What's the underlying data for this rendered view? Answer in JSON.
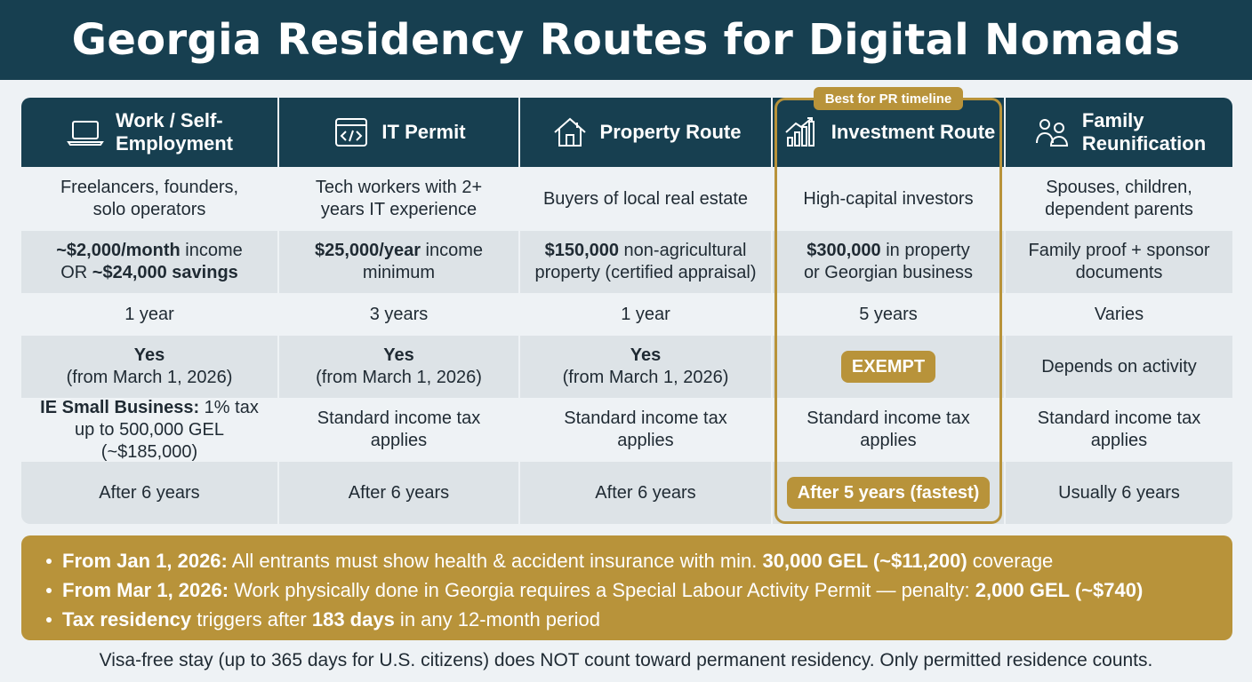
{
  "title": "Georgia Residency Routes for Digital Nomads",
  "best_tag": "Best for PR timeline",
  "columns": [
    {
      "header": "Work / Self-\nEmployment",
      "icon": "laptop-icon",
      "audience": "Freelancers, founders,\nsolo operators",
      "req_bold": "~$2,000/month",
      "req_text": " income\nOR ",
      "req_bold2": "~$24,000 savings",
      "duration": "1 year",
      "permit_main": "Yes",
      "permit_sub": "(from March 1, 2026)",
      "tax_bold": "IE Small Business:",
      "tax_text": " 1% tax\nup to 500,000 GEL (~$185,000)",
      "pr": "After 6 years"
    },
    {
      "header": "IT Permit",
      "icon": "code-window-icon",
      "audience": "Tech workers with 2+\nyears IT experience",
      "req_bold": "$25,000/year",
      "req_text": " income\nminimum",
      "req_bold2": "",
      "duration": "3 years",
      "permit_main": "Yes",
      "permit_sub": "(from March 1, 2026)",
      "tax_bold": "",
      "tax_text": "Standard income tax\napplies",
      "pr": "After 6 years"
    },
    {
      "header": "Property Route",
      "icon": "house-icon",
      "audience": "Buyers of local real estate",
      "req_bold": "$150,000",
      "req_text": " non-agricultural\nproperty (certified appraisal)",
      "req_bold2": "",
      "duration": "1 year",
      "permit_main": "Yes",
      "permit_sub": "(from March 1, 2026)",
      "tax_bold": "",
      "tax_text": "Standard income tax\napplies",
      "pr": "After 6 years"
    },
    {
      "header": "Investment Route",
      "icon": "growth-chart-icon",
      "audience": "High-capital investors",
      "req_bold": "$300,000",
      "req_text": " in property\nor Georgian business",
      "req_bold2": "",
      "duration": "5 years",
      "permit_main": "EXEMPT",
      "permit_sub": "",
      "tax_bold": "",
      "tax_text": "Standard income tax\napplies",
      "pr": "After 5 years (fastest)"
    },
    {
      "header": "Family\nReunification",
      "icon": "family-icon",
      "audience": "Spouses, children,\ndependent parents",
      "req_bold": "",
      "req_text": "Family proof + sponsor\ndocuments",
      "req_bold2": "",
      "duration": "Varies",
      "permit_main": "",
      "permit_sub": "Depends on activity",
      "tax_bold": "",
      "tax_text": "Standard income tax\napplies",
      "pr": "Usually 6 years"
    }
  ],
  "notes": [
    {
      "bold": "From Jan 1, 2026:",
      "text": " All entrants must show health & accident insurance with min. ",
      "bold2": "30,000 GEL (~$11,200)",
      "text2": " coverage"
    },
    {
      "bold": "From Mar 1, 2026:",
      "text": " Work physically done in Georgia requires a Special Labour Activity Permit — penalty: ",
      "bold2": "2,000 GEL (~$740)",
      "text2": ""
    },
    {
      "bold": "Tax residency",
      "text": " triggers after ",
      "bold2": "183 days",
      "text2": " in any 12-month period"
    }
  ],
  "footer": "Visa-free stay (up to 365 days for U.S. citizens) does NOT count toward permanent residency. Only permitted residence counts.",
  "colors": {
    "navy": "#173f50",
    "gold": "#b8933a",
    "shade": "#dde3e7",
    "bg": "#eef2f5"
  }
}
